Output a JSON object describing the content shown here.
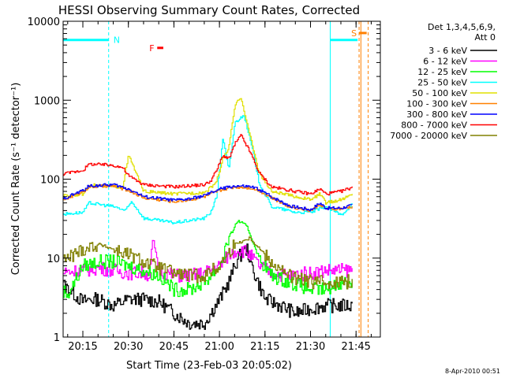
{
  "chart_data": {
    "type": "line",
    "title": "HESSI Observing Summary Count Rates, Corrected",
    "xlabel": "Start Time (23-Feb-03 20:05:02)",
    "ylabel": "Corrected Count Rate (s⁻¹ detector⁻¹)",
    "y_scale": "log",
    "ylim": [
      1,
      10000
    ],
    "y_ticks": [
      "1",
      "10",
      "100",
      "1000",
      "10000"
    ],
    "x_range_minutes": [
      0,
      87
    ],
    "x_ticks": [
      {
        "minute": 10,
        "label": "20:15"
      },
      {
        "minute": 25,
        "label": "20:30"
      },
      {
        "minute": 40,
        "label": "20:45"
      },
      {
        "minute": 55,
        "label": "21:00"
      },
      {
        "minute": 70,
        "label": "21:15"
      },
      {
        "minute": 85,
        "label": "21:30"
      },
      {
        "minute": 100,
        "label": "21:45"
      }
    ],
    "legend_header": [
      "Det 1,3,4,5,6,9,",
      "Att 0"
    ],
    "legend_position": "right",
    "stamp": "8-Apr-2010 00:51",
    "flags": [
      {
        "code": "N",
        "color": "#00ffff",
        "segments": [
          [
            0,
            18.5
          ],
          [
            91.5,
            100.5
          ]
        ],
        "y": 5800,
        "line_minute": 18.5
      },
      {
        "code": "F",
        "color": "#ff0000",
        "segments": [
          [
            34.5,
            36.5
          ]
        ],
        "y": 4600
      },
      {
        "code": "S",
        "color": "#ff8000",
        "segments": [
          [
            101,
            103.5
          ]
        ],
        "y": 7100,
        "line_minute": 104
      }
    ],
    "vertical_lines": [
      {
        "minute": 91.5,
        "color": "#00ffff",
        "style": "solid"
      },
      {
        "minute": 101.6,
        "color": "#ff8000",
        "style": "solid"
      },
      {
        "minute": 101,
        "color": "#ff8000",
        "style": "dashed"
      }
    ],
    "series": [
      {
        "name": "3 - 6 keV",
        "color": "#000000",
        "x": [
          0,
          10,
          12,
          15,
          20,
          25,
          30,
          35,
          40,
          45,
          50,
          55,
          58,
          61,
          64,
          66,
          70,
          75,
          80,
          85,
          90,
          95,
          99
        ],
        "y": [
          6,
          2.8,
          3,
          3,
          2.5,
          3,
          3,
          2.8,
          2,
          1.5,
          1.5,
          3,
          5,
          10,
          13,
          7,
          3,
          2.5,
          2,
          2.3,
          2.5,
          2.5,
          2.5
        ]
      },
      {
        "name": "6 - 12 keV",
        "color": "#ff00ff",
        "x": [
          0,
          10,
          15,
          20,
          25,
          30,
          32,
          33,
          35,
          40,
          45,
          50,
          55,
          58,
          61,
          64,
          68,
          72,
          78,
          85,
          90,
          95,
          99
        ],
        "y": [
          6.5,
          7,
          7.5,
          7,
          6.5,
          6.5,
          6,
          18,
          7,
          6,
          6,
          6.5,
          8,
          11,
          13,
          12,
          8,
          6.5,
          6,
          6.5,
          7,
          7,
          7
        ]
      },
      {
        "name": "12 - 25 keV",
        "color": "#00ff00",
        "x": [
          0,
          5,
          10,
          15,
          20,
          25,
          30,
          35,
          40,
          45,
          50,
          55,
          58,
          61,
          64,
          68,
          72,
          78,
          85,
          90,
          95,
          99
        ],
        "y": [
          5,
          3.5,
          8,
          9,
          9,
          8,
          7,
          6,
          4,
          4,
          5,
          8,
          18,
          30,
          25,
          10,
          6,
          5,
          4,
          4,
          5,
          5
        ]
      },
      {
        "name": "25 - 50 keV",
        "color": "#00ffff",
        "x": [
          0,
          10,
          12,
          20,
          24,
          26,
          30,
          40,
          50,
          52,
          54,
          56,
          58,
          60,
          63,
          66,
          68,
          72,
          80,
          85,
          90,
          95,
          99
        ],
        "y": [
          35,
          38,
          50,
          45,
          40,
          52,
          32,
          28,
          32,
          38,
          60,
          330,
          130,
          520,
          650,
          220,
          90,
          45,
          38,
          38,
          45,
          35,
          50
        ]
      },
      {
        "name": "50 - 100 keV",
        "color": "#e0e000",
        "x": [
          0,
          10,
          12,
          20,
          23,
          25,
          30,
          40,
          50,
          52,
          54,
          56,
          58,
          60,
          62,
          65,
          68,
          72,
          80,
          85,
          88,
          90,
          95,
          99
        ],
        "y": [
          60,
          65,
          85,
          80,
          80,
          200,
          70,
          65,
          68,
          78,
          95,
          180,
          250,
          850,
          1100,
          350,
          120,
          70,
          60,
          55,
          65,
          50,
          55,
          65
        ]
      },
      {
        "name": "100 - 300 keV",
        "color": "#ff8000",
        "x": [
          0,
          10,
          12,
          20,
          25,
          30,
          40,
          45,
          50,
          55,
          60,
          65,
          68,
          72,
          78,
          85,
          88,
          90,
          95,
          99
        ],
        "y": [
          48,
          70,
          80,
          82,
          72,
          58,
          52,
          55,
          60,
          72,
          80,
          78,
          72,
          58,
          45,
          40,
          48,
          42,
          42,
          45
        ]
      },
      {
        "name": "300 - 800 keV",
        "color": "#0000ff",
        "x": [
          0,
          10,
          12,
          20,
          25,
          30,
          40,
          45,
          50,
          55,
          60,
          65,
          68,
          72,
          78,
          85,
          88,
          90,
          95,
          99
        ],
        "y": [
          50,
          72,
          82,
          85,
          75,
          60,
          54,
          56,
          62,
          75,
          82,
          80,
          74,
          60,
          46,
          41,
          50,
          43,
          43,
          47
        ]
      },
      {
        "name": "800 - 7000 keV",
        "color": "#ff0000",
        "x": [
          0,
          10,
          12,
          20,
          23,
          25,
          30,
          40,
          50,
          52,
          54,
          56,
          58,
          60,
          62,
          65,
          68,
          72,
          80,
          85,
          88,
          90,
          95,
          99
        ],
        "y": [
          110,
          130,
          155,
          150,
          140,
          110,
          85,
          80,
          85,
          95,
          130,
          200,
          180,
          280,
          360,
          220,
          120,
          80,
          70,
          65,
          75,
          65,
          70,
          80
        ]
      },
      {
        "name": "7000 - 20000 keV",
        "color": "#808000",
        "x": [
          0,
          5,
          10,
          15,
          20,
          25,
          30,
          35,
          40,
          45,
          50,
          55,
          60,
          65,
          70,
          75,
          80,
          85,
          90,
          95,
          99
        ],
        "y": [
          8,
          10,
          13,
          15,
          13,
          11,
          9,
          7.5,
          6.5,
          6,
          6,
          8,
          15,
          18,
          11,
          7,
          5.5,
          5,
          5,
          5,
          5
        ]
      }
    ]
  }
}
